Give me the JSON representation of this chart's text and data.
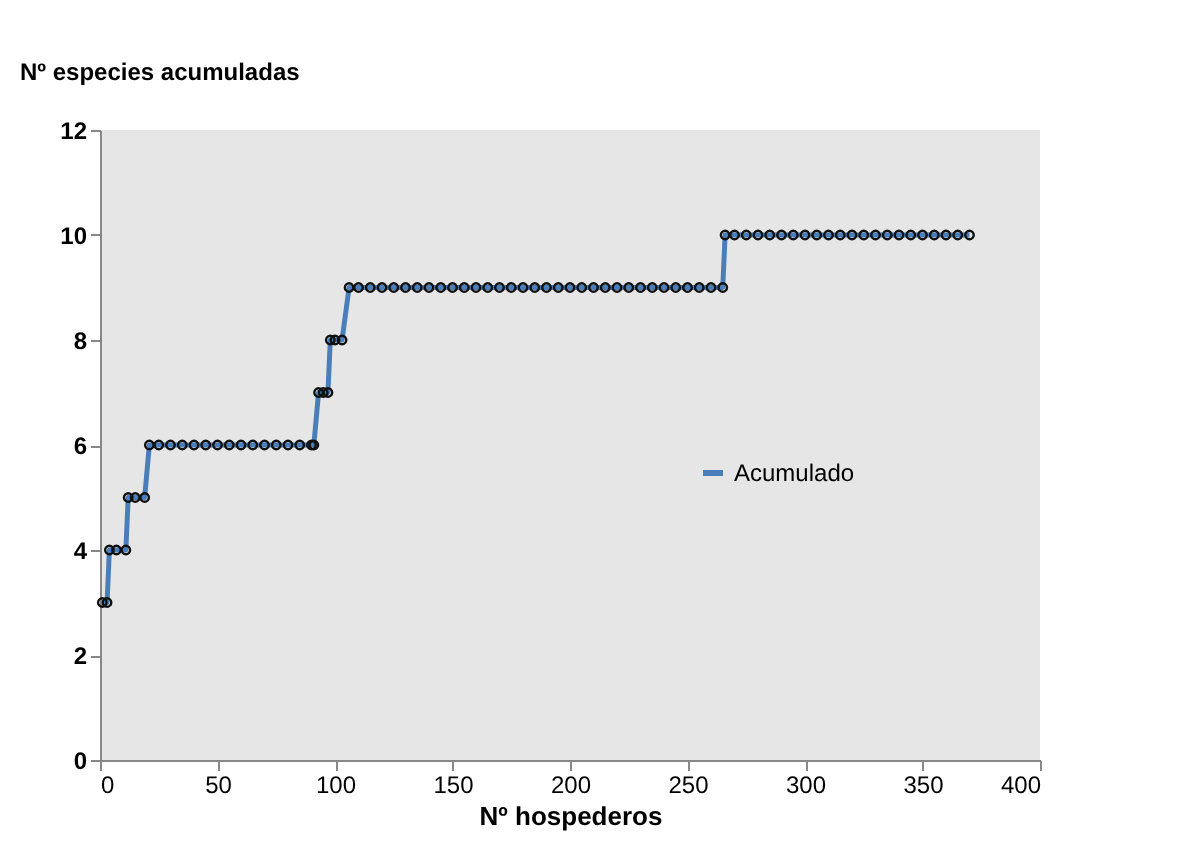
{
  "chart_data": {
    "type": "line",
    "title": null,
    "ylabel": "Nº especies acumuladas",
    "xlabel": "Nº hospederos",
    "xlim": [
      0,
      400
    ],
    "xticks": [
      0,
      50,
      100,
      150,
      200,
      250,
      300,
      350,
      400
    ],
    "ylim": [
      0,
      12
    ],
    "yticks": [
      0,
      2,
      4,
      6,
      8,
      10,
      12
    ],
    "grid": false,
    "legend": "right",
    "marker": "circle",
    "line_style": "solid",
    "series": [
      {
        "name": "Acumulado",
        "color": "#4a7ebb",
        "x": [
          1,
          3,
          4,
          7,
          11,
          12,
          15,
          19,
          21,
          25,
          30,
          35,
          40,
          45,
          50,
          55,
          60,
          65,
          70,
          75,
          80,
          85,
          90,
          91,
          93,
          95,
          97,
          98,
          100,
          103,
          106,
          110,
          115,
          120,
          125,
          130,
          135,
          140,
          145,
          150,
          155,
          160,
          165,
          170,
          175,
          180,
          185,
          190,
          195,
          200,
          205,
          210,
          215,
          220,
          225,
          230,
          235,
          240,
          245,
          250,
          255,
          260,
          265,
          266,
          270,
          275,
          280,
          285,
          290,
          295,
          300,
          305,
          310,
          315,
          320,
          325,
          330,
          335,
          340,
          345,
          350,
          355,
          360,
          365,
          370
        ],
        "values": [
          3,
          3,
          4,
          4,
          4,
          5,
          5,
          5,
          6,
          6,
          6,
          6,
          6,
          6,
          6,
          6,
          6,
          6,
          6,
          6,
          6,
          6,
          6,
          6,
          7,
          7,
          7,
          8,
          8,
          8,
          9,
          9,
          9,
          9,
          9,
          9,
          9,
          9,
          9,
          9,
          9,
          9,
          9,
          9,
          9,
          9,
          9,
          9,
          9,
          9,
          9,
          9,
          9,
          9,
          9,
          9,
          9,
          9,
          9,
          9,
          9,
          9,
          9,
          10,
          10,
          10,
          10,
          10,
          10,
          10,
          10,
          10,
          10,
          10,
          10,
          10,
          10,
          10,
          10,
          10,
          10,
          10,
          10,
          10,
          10
        ]
      }
    ]
  }
}
